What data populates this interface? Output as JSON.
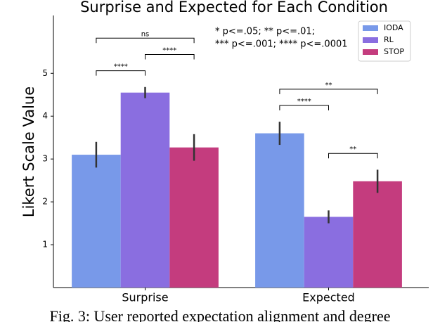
{
  "chart_data": {
    "type": "bar",
    "title": "Surprise and Expected for Each Condition",
    "y_label": "Likert Scale Value",
    "categories": [
      "Surprise",
      "Expected"
    ],
    "series": [
      {
        "name": "IODA",
        "color": "#7899e9",
        "values": [
          3.1,
          3.6
        ],
        "errors": [
          0.3,
          0.27
        ]
      },
      {
        "name": "RL",
        "color": "#8a6ee0",
        "values": [
          4.55,
          1.65
        ],
        "errors": [
          0.13,
          0.15
        ]
      },
      {
        "name": "STOP",
        "color": "#c43c7e",
        "values": [
          3.27,
          2.48
        ],
        "errors": [
          0.31,
          0.27
        ]
      }
    ],
    "ylim": [
      0,
      6.35
    ],
    "yticks": [
      1,
      2,
      3,
      4,
      5
    ],
    "legend": "upper right",
    "annotation_lines": [
      "* p<=.05; ** p<=.01;",
      "*** p<=.001; **** p<=.0001"
    ],
    "brackets": [
      {
        "category": 0,
        "from": 0,
        "to": 1,
        "label": "****"
      },
      {
        "category": 0,
        "from": 1,
        "to": 2,
        "label": "****"
      },
      {
        "category": 0,
        "from": 0,
        "to": 2,
        "label": "ns"
      },
      {
        "category": 1,
        "from": 1,
        "to": 2,
        "label": "**"
      },
      {
        "category": 1,
        "from": 0,
        "to": 1,
        "label": "****"
      },
      {
        "category": 1,
        "from": 0,
        "to": 2,
        "label": "**"
      }
    ],
    "caption": "Fig. 3: User reported expectation alignment and degree"
  }
}
